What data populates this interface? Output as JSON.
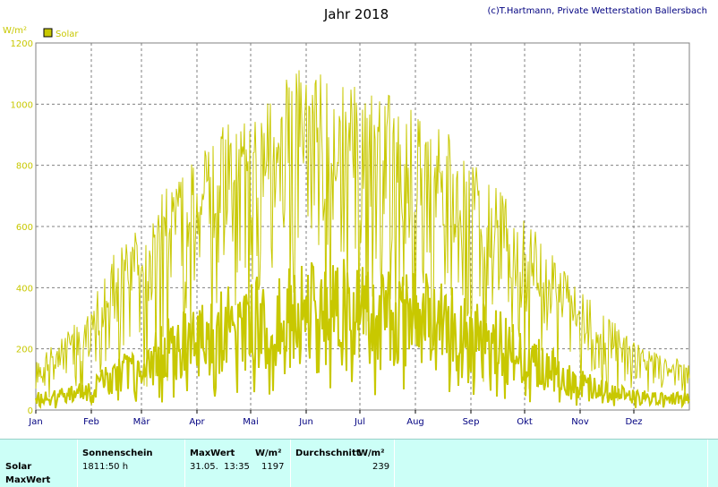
{
  "credit": "(c)T.Hartmann, Private Wetterstation Ballersbach",
  "chart_data": {
    "type": "line",
    "title": "Jahr 2018",
    "ylabel": "W/m²",
    "ylim": [
      0,
      1200
    ],
    "yticks": [
      "0",
      "200",
      "400",
      "600",
      "800",
      "1000",
      "1200"
    ],
    "xlim": [
      1,
      366
    ],
    "xticks": [
      {
        "label": "Jan",
        "day": 1
      },
      {
        "label": "Feb",
        "day": 32
      },
      {
        "label": "Mär",
        "day": 60
      },
      {
        "label": "Apr",
        "day": 91
      },
      {
        "label": "Mai",
        "day": 121
      },
      {
        "label": "Jun",
        "day": 152
      },
      {
        "label": "Jul",
        "day": 182
      },
      {
        "label": "Aug",
        "day": 213
      },
      {
        "label": "Sep",
        "day": 244
      },
      {
        "label": "Okt",
        "day": 274
      },
      {
        "label": "Nov",
        "day": 305
      },
      {
        "label": "Dez",
        "day": 335
      }
    ],
    "grid": true,
    "legend": "top-left",
    "series": [
      {
        "name": "Solar",
        "color": "#c8c800"
      }
    ],
    "daily_max_by_halfmonth": [
      {
        "day": 1,
        "value": 160
      },
      {
        "day": 16,
        "value": 230
      },
      {
        "day": 32,
        "value": 330
      },
      {
        "day": 46,
        "value": 520
      },
      {
        "day": 60,
        "value": 580
      },
      {
        "day": 75,
        "value": 720
      },
      {
        "day": 91,
        "value": 830
      },
      {
        "day": 106,
        "value": 920
      },
      {
        "day": 121,
        "value": 980
      },
      {
        "day": 136,
        "value": 1030
      },
      {
        "day": 152,
        "value": 1100
      },
      {
        "day": 167,
        "value": 1080
      },
      {
        "day": 182,
        "value": 1050
      },
      {
        "day": 197,
        "value": 1010
      },
      {
        "day": 213,
        "value": 950
      },
      {
        "day": 228,
        "value": 900
      },
      {
        "day": 244,
        "value": 800
      },
      {
        "day": 259,
        "value": 700
      },
      {
        "day": 274,
        "value": 620
      },
      {
        "day": 289,
        "value": 500
      },
      {
        "day": 305,
        "value": 380
      },
      {
        "day": 320,
        "value": 300
      },
      {
        "day": 335,
        "value": 220
      },
      {
        "day": 350,
        "value": 180
      },
      {
        "day": 366,
        "value": 150
      }
    ],
    "daily_mean_by_halfmonth": [
      {
        "day": 1,
        "value": 50
      },
      {
        "day": 16,
        "value": 60
      },
      {
        "day": 32,
        "value": 90
      },
      {
        "day": 46,
        "value": 150
      },
      {
        "day": 60,
        "value": 190
      },
      {
        "day": 75,
        "value": 250
      },
      {
        "day": 91,
        "value": 300
      },
      {
        "day": 106,
        "value": 340
      },
      {
        "day": 121,
        "value": 360
      },
      {
        "day": 136,
        "value": 380
      },
      {
        "day": 152,
        "value": 400
      },
      {
        "day": 167,
        "value": 410
      },
      {
        "day": 182,
        "value": 420
      },
      {
        "day": 197,
        "value": 410
      },
      {
        "day": 213,
        "value": 380
      },
      {
        "day": 228,
        "value": 360
      },
      {
        "day": 244,
        "value": 310
      },
      {
        "day": 259,
        "value": 280
      },
      {
        "day": 274,
        "value": 230
      },
      {
        "day": 289,
        "value": 170
      },
      {
        "day": 305,
        "value": 110
      },
      {
        "day": 320,
        "value": 80
      },
      {
        "day": 335,
        "value": 60
      },
      {
        "day": 350,
        "value": 50
      },
      {
        "day": 366,
        "value": 50
      }
    ]
  },
  "stats": {
    "row_label_1": "Solar",
    "row_label_2": "MaxWert",
    "col1_header": "Sonnenschein",
    "col1_value": "1811:50 h",
    "col2_header": "MaxWert",
    "col2_unit": "W/m²",
    "col2_date": "31.05.",
    "col2_time": "13:35",
    "col2_value": "1197",
    "col3_header": "Durchschnitt",
    "col3_unit": "W/m²",
    "col3_value": "239"
  }
}
